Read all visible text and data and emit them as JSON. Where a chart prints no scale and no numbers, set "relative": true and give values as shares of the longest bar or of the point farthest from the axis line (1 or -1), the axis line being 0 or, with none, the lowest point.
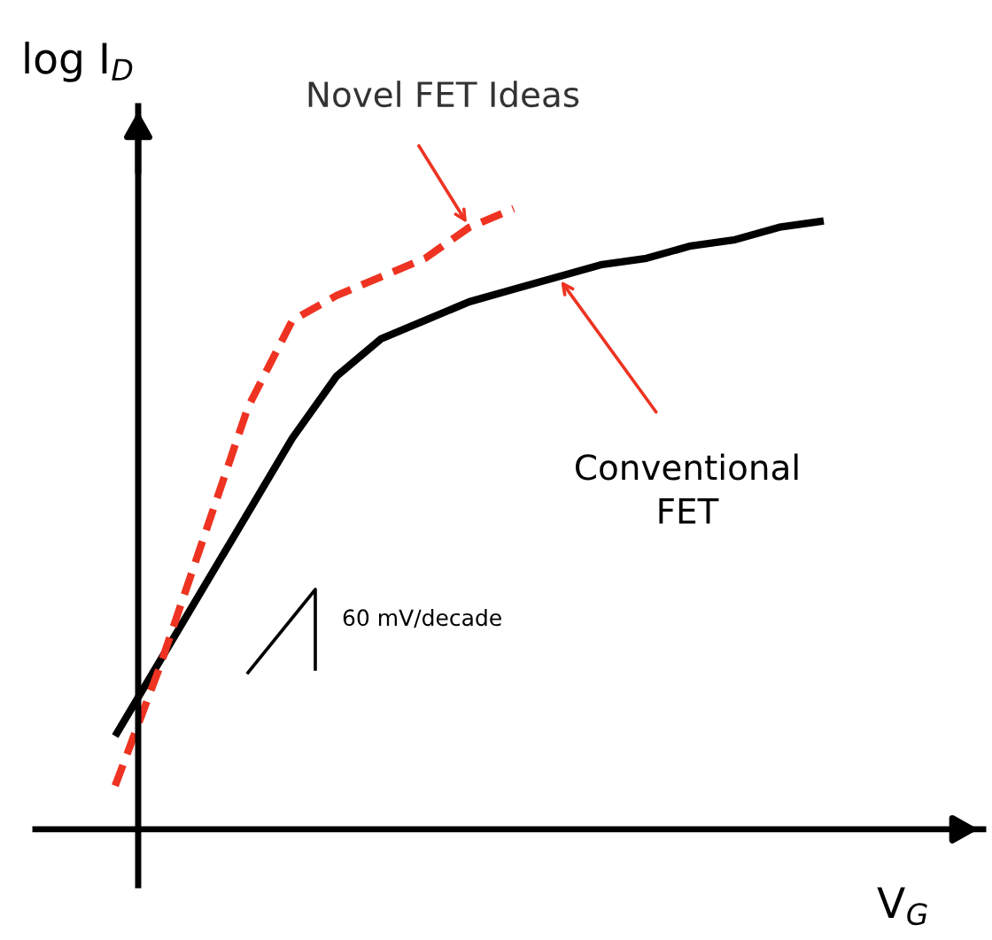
{
  "chart_data": {
    "type": "line",
    "relative": true,
    "xlabel": "V$_{G}$",
    "ylabel": "log I$_{D}$",
    "categories": [
      null,
      null,
      null,
      null,
      null,
      null,
      null,
      null,
      null,
      null,
      null,
      null,
      null,
      null,
      null,
      null,
      null
    ],
    "series": [
      {
        "name": "Conventional\nFET",
        "color": "#000000",
        "line_style": "solid",
        "values": [
          0.15,
          0.27,
          0.39,
          0.51,
          0.63,
          0.73,
          0.79,
          0.82,
          0.85,
          0.87,
          0.89,
          0.91,
          0.92,
          0.94,
          0.95,
          0.97,
          0.98
        ]
      },
      {
        "name": "Novel FET Ideas",
        "color": "#ee3322",
        "line_style": "dashed",
        "values": [
          0.07,
          0.26,
          0.47,
          0.68,
          0.82,
          0.86,
          0.89,
          0.92,
          0.97,
          1.0,
          null,
          null,
          null,
          null,
          null,
          null,
          null
        ]
      }
    ],
    "annotations": [
      "60 mV/decade"
    ],
    "legend": false,
    "grid": false,
    "marker": "none"
  }
}
